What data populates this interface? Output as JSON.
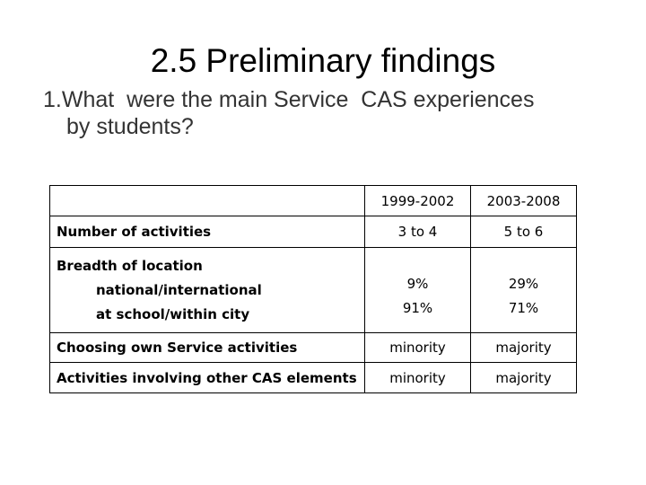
{
  "slide": {
    "title": "2.5 Preliminary findings",
    "question_line1": "1.What  were the main Service  CAS experiences",
    "question_line2": "by students?"
  },
  "table": {
    "columns": [
      "",
      "1999-2002",
      "2003-2008"
    ],
    "rows": [
      {
        "label": "Number of activities",
        "a": "3 to 4",
        "b": "5 to 6"
      },
      {
        "label": "Breadth of location",
        "sub_labels": [
          "national/international",
          "at school/within city"
        ],
        "a": [
          "9%",
          "91%"
        ],
        "b": [
          "29%",
          "71%"
        ]
      },
      {
        "label": "Choosing own Service activities",
        "a": "minority",
        "b": "majority"
      },
      {
        "label": "Activities involving other CAS elements",
        "a": "minority",
        "b": "majority"
      }
    ]
  }
}
